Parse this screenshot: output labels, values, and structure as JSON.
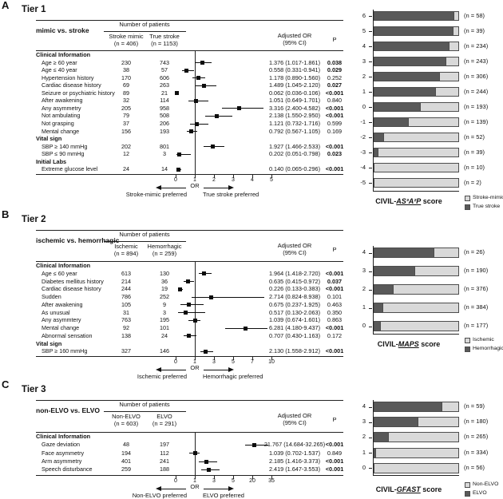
{
  "colors": {
    "dark": "#595959",
    "light": "#d9d9d9",
    "line": "#222222",
    "marker": "#0d0d0d"
  },
  "chart_data": [
    {
      "panel": "A",
      "tier": "Tier 1",
      "comparison": "mimic vs. stroke",
      "type": "forest+stacked_bar",
      "forest": {
        "patients_header": "Number of patients",
        "group1_name": "Stroke mimic",
        "group1_n": "(n = 406)",
        "group2_name": "True stroke",
        "group2_n": "(n = 1153)",
        "or_header_line1": "Adjusted OR",
        "or_header_line2": "(95% CI)",
        "p_header": "P",
        "axis_ticks": [
          0,
          1,
          2,
          3,
          4,
          5
        ],
        "or_axis_label": "OR",
        "left_pref": "Stroke-mimic preferred",
        "right_pref": "True stroke preferred",
        "lines": [
          {
            "type": "section",
            "label": "Clinical Information"
          },
          {
            "type": "row",
            "label": "Age ≥ 60 year",
            "n1": "230",
            "n2": "743",
            "or": 1.376,
            "lo": 1.017,
            "hi": 1.861,
            "or_text": "1.376 (1.017-1.861)",
            "p": "0.038",
            "sig": true
          },
          {
            "type": "row",
            "label": "Age ≤ 40 year",
            "n1": "38",
            "n2": "57",
            "or": 0.558,
            "lo": 0.331,
            "hi": 0.941,
            "or_text": "0.558 (0.331-0.941)",
            "p": "0.029",
            "sig": true
          },
          {
            "type": "row",
            "label": "Hypertension history",
            "n1": "170",
            "n2": "606",
            "or": 1.178,
            "lo": 0.89,
            "hi": 1.56,
            "or_text": "1.178 (0.890-1.560)",
            "p": "0.252",
            "sig": false
          },
          {
            "type": "row",
            "label": "Cardiac disease history",
            "n1": "69",
            "n2": "263",
            "or": 1.489,
            "lo": 1.045,
            "hi": 2.12,
            "or_text": "1.489 (1.045-2.120)",
            "p": "0.027",
            "sig": true
          },
          {
            "type": "row",
            "label": "Seizure or psychiatric history",
            "n1": "89",
            "n2": "21",
            "or": 0.062,
            "lo": 0.036,
            "hi": 0.106,
            "or_text": "0.062 (0.036-0.106)",
            "p": "<0.001",
            "sig": true
          },
          {
            "type": "row",
            "label": "After awakening",
            "n1": "32",
            "n2": "114",
            "or": 1.051,
            "lo": 0.649,
            "hi": 1.701,
            "or_text": "1.051 (0.649-1.701)",
            "p": "0.840",
            "sig": false
          },
          {
            "type": "row",
            "label": "Any asymmetry",
            "n1": "205",
            "n2": "958",
            "or": 3.316,
            "lo": 2.4,
            "hi": 4.582,
            "or_text": "3.316 (2.400-4.582)",
            "p": "<0.001",
            "sig": true
          },
          {
            "type": "row",
            "label": "Not ambulating",
            "n1": "79",
            "n2": "508",
            "or": 2.138,
            "lo": 1.55,
            "hi": 2.95,
            "or_text": "2.138 (1.550-2.950)",
            "p": "<0.001",
            "sig": true
          },
          {
            "type": "row",
            "label": "Not grasping",
            "n1": "37",
            "n2": "206",
            "or": 1.121,
            "lo": 0.732,
            "hi": 1.716,
            "or_text": "1.121 (0.732-1.716)",
            "p": "0.599",
            "sig": false
          },
          {
            "type": "row",
            "label": "Mental change",
            "n1": "156",
            "n2": "193",
            "or": 0.792,
            "lo": 0.567,
            "hi": 1.105,
            "or_text": "0.792 (0.567-1.105)",
            "p": "0.169",
            "sig": false
          },
          {
            "type": "section",
            "label": "Vital sign"
          },
          {
            "type": "row",
            "label": "SBP ≥ 140 mmHg",
            "n1": "202",
            "n2": "801",
            "or": 1.927,
            "lo": 1.466,
            "hi": 2.533,
            "or_text": "1.927 (1.466-2.533)",
            "p": "<0.001",
            "sig": true
          },
          {
            "type": "row",
            "label": "SBP ≤ 90 mmHg",
            "n1": "12",
            "n2": "3",
            "or": 0.202,
            "lo": 0.051,
            "hi": 0.798,
            "or_text": "0.202 (0.051-0.798)",
            "p": "0.023",
            "sig": true
          },
          {
            "type": "section",
            "label": "Initial Labs"
          },
          {
            "type": "row",
            "label": "Extreme glucose level",
            "n1": "24",
            "n2": "14",
            "or": 0.14,
            "lo": 0.065,
            "hi": 0.296,
            "or_text": "0.140 (0.065-0.296)",
            "p": "<0.001",
            "sig": true
          }
        ]
      },
      "bars": {
        "title_prefix": "CIVIL-",
        "title_name": "AS³A²P",
        "title_suffix": " score",
        "legend": [
          {
            "label": "Stroke-mimic",
            "fill": "light"
          },
          {
            "label": "True stroke",
            "fill": "dark"
          }
        ],
        "items": [
          {
            "score": "6",
            "n_label": "(n = 58)",
            "dark_pct": 94
          },
          {
            "score": "5",
            "n_label": "(n = 39)",
            "dark_pct": 93
          },
          {
            "score": "4",
            "n_label": "(n = 234)",
            "dark_pct": 89
          },
          {
            "score": "3",
            "n_label": "(n = 243)",
            "dark_pct": 85
          },
          {
            "score": "2",
            "n_label": "(n = 306)",
            "dark_pct": 78
          },
          {
            "score": "1",
            "n_label": "(n = 244)",
            "dark_pct": 73
          },
          {
            "score": "0",
            "n_label": "(n = 193)",
            "dark_pct": 55
          },
          {
            "score": "-1",
            "n_label": "(n = 139)",
            "dark_pct": 41
          },
          {
            "score": "-2",
            "n_label": "(n = 52)",
            "dark_pct": 12
          },
          {
            "score": "-3",
            "n_label": "(n = 39)",
            "dark_pct": 6
          },
          {
            "score": "-4",
            "n_label": "(n = 10)",
            "dark_pct": 0
          },
          {
            "score": "-5",
            "n_label": "(n = 2)",
            "dark_pct": 0
          }
        ]
      }
    },
    {
      "panel": "B",
      "tier": "Tier 2",
      "comparison": "ischemic vs. hemorrhagic",
      "type": "forest+stacked_bar",
      "forest": {
        "patients_header": "Number of patients",
        "group1_name": "Ischemic",
        "group1_n": "(n = 894)",
        "group2_name": "Hemorrhagic",
        "group2_n": "(n = 259)",
        "or_header_line1": "Adjusted OR",
        "or_header_line2": "(95% CI)",
        "p_header": "P",
        "axis_ticks": [
          0,
          1,
          3,
          5,
          7,
          10
        ],
        "or_axis_label": "OR",
        "left_pref": "Ischemic preferred",
        "right_pref": "Hemorrhagic preferred",
        "lines": [
          {
            "type": "section",
            "label": "Clinical Information"
          },
          {
            "type": "row",
            "label": "Age ≤ 60 year",
            "n1": "613",
            "n2": "130",
            "or": 1.964,
            "lo": 1.418,
            "hi": 2.72,
            "or_text": "1.964 (1.418-2.720)",
            "p": "<0.001",
            "sig": true
          },
          {
            "type": "row",
            "label": "Diabetes mellitus history",
            "n1": "214",
            "n2": "36",
            "or": 0.635,
            "lo": 0.415,
            "hi": 0.972,
            "or_text": "0.635 (0.415-0.972)",
            "p": "0.037",
            "sig": true
          },
          {
            "type": "row",
            "label": "Cardiac disease history",
            "n1": "244",
            "n2": "19",
            "or": 0.226,
            "lo": 0.133,
            "hi": 0.383,
            "or_text": "0.226 (0.133-0.383)",
            "p": "<0.001",
            "sig": true
          },
          {
            "type": "row",
            "label": "Sudden",
            "n1": "786",
            "n2": "252",
            "or": 2.714,
            "lo": 0.824,
            "hi": 8.938,
            "or_text": "2.714 (0.824-8.938)",
            "p": "0.101",
            "sig": false
          },
          {
            "type": "row",
            "label": "After awakening",
            "n1": "105",
            "n2": "9",
            "or": 0.675,
            "lo": 0.237,
            "hi": 1.925,
            "or_text": "0.675 (0.237-1.925)",
            "p": "0.463",
            "sig": false
          },
          {
            "type": "row",
            "label": "As unusual",
            "n1": "31",
            "n2": "3",
            "or": 0.517,
            "lo": 0.13,
            "hi": 2.063,
            "or_text": "0.517 (0.130-2.063)",
            "p": "0.350",
            "sig": false
          },
          {
            "type": "row",
            "label": "Any asymmtery",
            "n1": "763",
            "n2": "195",
            "or": 1.039,
            "lo": 0.674,
            "hi": 1.601,
            "or_text": "1.039 (0.674-1.601)",
            "p": "0.863",
            "sig": false
          },
          {
            "type": "row",
            "label": "Mental change",
            "n1": "92",
            "n2": "101",
            "or": 6.281,
            "lo": 4.18,
            "hi": 9.437,
            "or_text": "6.281 (4.180-9.437)",
            "p": "<0.001",
            "sig": true
          },
          {
            "type": "row",
            "label": "Abnormal sensation",
            "n1": "138",
            "n2": "24",
            "or": 0.707,
            "lo": 0.43,
            "hi": 1.163,
            "or_text": "0.707 (0.430-1.163)",
            "p": "0.172",
            "sig": false
          },
          {
            "type": "section",
            "label": "Vital sign"
          },
          {
            "type": "row",
            "label": "SBP ≥ 160 mmHg",
            "n1": "327",
            "n2": "146",
            "or": 2.13,
            "lo": 1.558,
            "hi": 2.912,
            "or_text": "2.130 (1.558-2.912)",
            "p": "<0.001",
            "sig": true
          }
        ]
      },
      "bars": {
        "title_prefix": "CIVIL-",
        "title_name": "MAPS",
        "title_suffix": " score",
        "legend": [
          {
            "label": "Ischemic",
            "fill": "light"
          },
          {
            "label": "Hemorrhagic",
            "fill": "dark"
          }
        ],
        "items": [
          {
            "score": "4",
            "n_label": "(n = 26)",
            "dark_pct": 71
          },
          {
            "score": "3",
            "n_label": "(n = 190)",
            "dark_pct": 49
          },
          {
            "score": "2",
            "n_label": "(n = 376)",
            "dark_pct": 23
          },
          {
            "score": "1",
            "n_label": "(n = 384)",
            "dark_pct": 11
          },
          {
            "score": "0",
            "n_label": "(n = 177)",
            "dark_pct": 8
          }
        ]
      }
    },
    {
      "panel": "C",
      "tier": "Tier 3",
      "comparison": "non-ELVO vs. ELVO",
      "type": "forest+stacked_bar",
      "forest": {
        "patients_header": "Number of patients",
        "group1_name": "Non-ELVO",
        "group1_n": "(n = 603)",
        "group2_name": "ELVO",
        "group2_n": "(n = 291)",
        "or_header_line1": "Adjusted OR",
        "or_header_line2": "(95% CI)",
        "p_header": "P",
        "axis_ticks": [
          0,
          1,
          3,
          5,
          20,
          35
        ],
        "or_axis_label": "OR",
        "left_pref": "Non-ELVO preferred",
        "right_pref": "ELVO preferred",
        "lines": [
          {
            "type": "section",
            "label": "Clinical Information"
          },
          {
            "type": "row",
            "label": "Gaze deviation",
            "n1": "48",
            "n2": "197",
            "or": 21.767,
            "lo": 14.684,
            "hi": 32.265,
            "or_text": "21.767 (14.684-32.265)",
            "p": "<0.001",
            "sig": true
          },
          {
            "type": "row",
            "label": "Face asymmetry",
            "n1": "194",
            "n2": "112",
            "or": 1.039,
            "lo": 0.702,
            "hi": 1.537,
            "or_text": "1.039 (0.702-1.537)",
            "p": "0.849",
            "sig": false
          },
          {
            "type": "row",
            "label": "Arm asymmetry",
            "n1": "401",
            "n2": "241",
            "or": 2.185,
            "lo": 1.416,
            "hi": 3.373,
            "or_text": "2.185 (1.416-3.373)",
            "p": "<0.001",
            "sig": true
          },
          {
            "type": "row",
            "label": "Speech disturbance",
            "n1": "259",
            "n2": "188",
            "or": 2.419,
            "lo": 1.647,
            "hi": 3.553,
            "or_text": "2.419 (1.647-3.553)",
            "p": "<0.001",
            "sig": true
          }
        ]
      },
      "bars": {
        "title_prefix": "CIVIL-",
        "title_name": "GFAST",
        "title_suffix": " score",
        "legend": [
          {
            "label": "Non-ELVO",
            "fill": "light"
          },
          {
            "label": "ELVO",
            "fill": "dark"
          }
        ],
        "items": [
          {
            "score": "4",
            "n_label": "(n = 59)",
            "dark_pct": 80
          },
          {
            "score": "3",
            "n_label": "(n = 180)",
            "dark_pct": 52
          },
          {
            "score": "2",
            "n_label": "(n = 265)",
            "dark_pct": 18
          },
          {
            "score": "1",
            "n_label": "(n = 334)",
            "dark_pct": 3
          },
          {
            "score": "0",
            "n_label": "(n = 56)",
            "dark_pct": 0
          }
        ]
      }
    }
  ]
}
